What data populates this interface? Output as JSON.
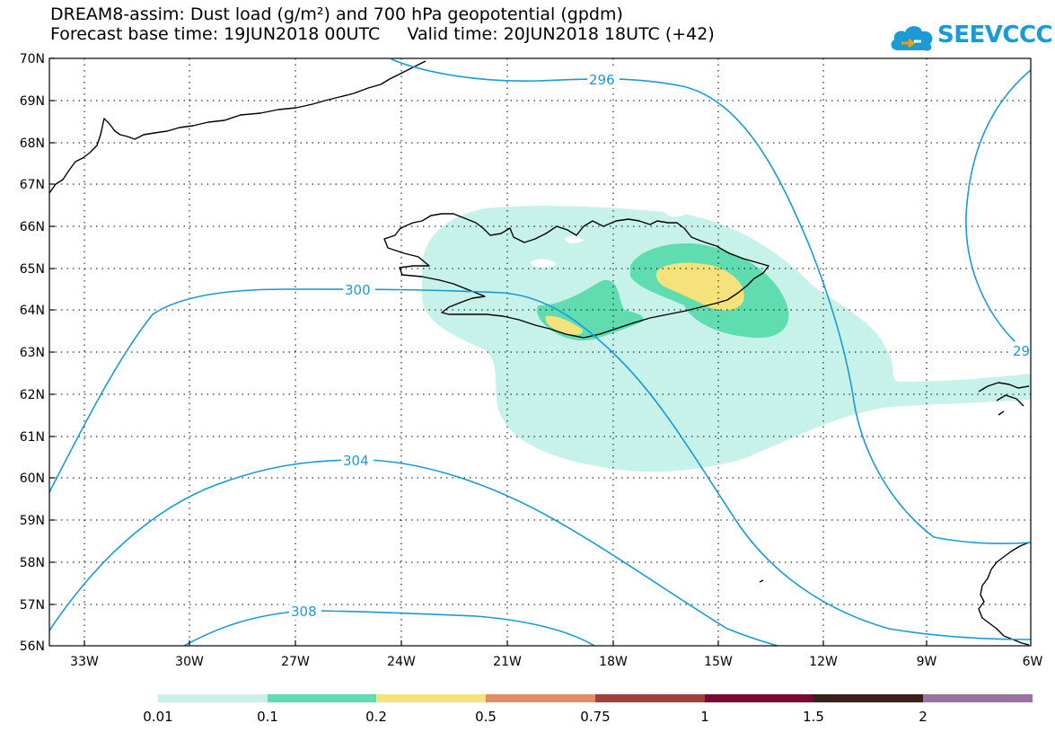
{
  "title": {
    "line1": "DREAM8-assim: Dust load (g/m²) and 700 hPa geopotential (gpdm)",
    "line2": "Forecast base time: 19JUN2018 00UTC     Valid time: 20JUN2018 18UTC (+42)"
  },
  "logo": {
    "text": "SEEVCCC",
    "icon": "cloud-icon",
    "color": "#1a9ad6"
  },
  "map": {
    "lat_range": [
      56,
      70
    ],
    "lon_range": [
      -34.5,
      -6
    ],
    "lat_labels": [
      "70N",
      "69N",
      "68N",
      "67N",
      "66N",
      "65N",
      "64N",
      "63N",
      "62N",
      "61N",
      "60N",
      "59N",
      "58N",
      "57N",
      "56N"
    ],
    "lon_labels": [
      "33W",
      "30W",
      "27W",
      "24W",
      "21W",
      "18W",
      "15W",
      "12W",
      "9W",
      "6W"
    ],
    "contour_labels": [
      "296",
      "300",
      "304",
      "308",
      "29"
    ],
    "contour_color": "#1a9ad6"
  },
  "colorbar": {
    "labels": [
      "0.01",
      "0.1",
      "0.2",
      "0.5",
      "0.75",
      "1",
      "1.5",
      "2"
    ],
    "colors": [
      "#c6f2ea",
      "#5fdcb0",
      "#f5e27a",
      "#e08e6a",
      "#9c4238",
      "#7a0a32",
      "#3a2018",
      "#9a73a3"
    ]
  }
}
